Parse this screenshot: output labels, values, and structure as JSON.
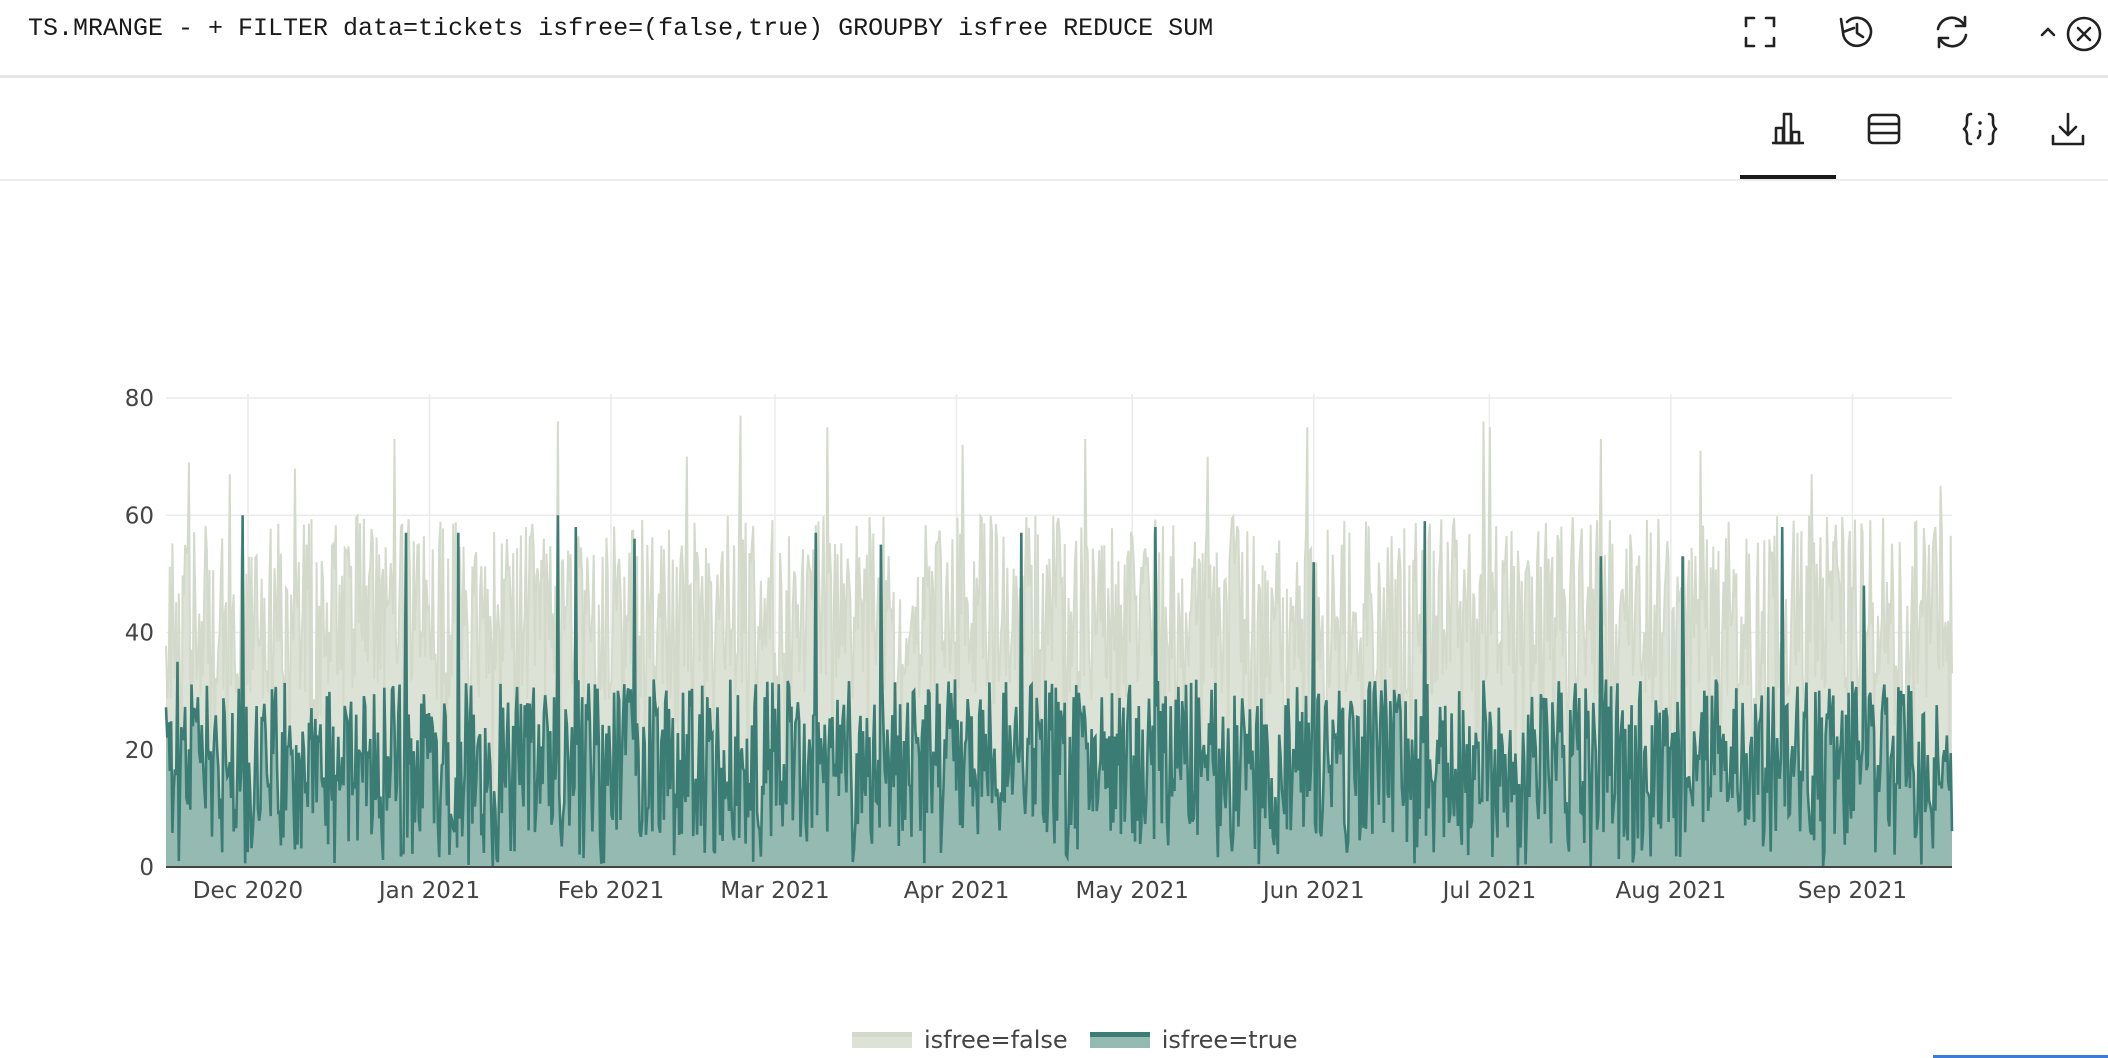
{
  "query": {
    "text": "TS.MRANGE - + FILTER data=tickets isfree=(false,true) GROUPBY isfree REDUCE SUM"
  },
  "top_actions": [
    {
      "name": "fullscreen-button",
      "icon": "fullscreen-icon"
    },
    {
      "name": "history-button",
      "icon": "history-icon"
    },
    {
      "name": "refresh-button",
      "icon": "refresh-icon"
    },
    {
      "name": "collapse-button",
      "icon": "chevron-up-icon"
    },
    {
      "name": "close-button",
      "icon": "close-circle-icon"
    }
  ],
  "view_tabs": [
    {
      "name": "tab-chart",
      "icon": "bar-chart-icon",
      "active": true
    },
    {
      "name": "tab-table",
      "icon": "table-icon",
      "active": false
    },
    {
      "name": "tab-json",
      "icon": "json-braces-icon",
      "active": false
    },
    {
      "name": "tab-download",
      "icon": "download-icon",
      "active": false
    }
  ],
  "colors": {
    "false_fill": "#dde2d6",
    "false_line": "#d4dacb",
    "true_fill": "#95bab2",
    "true_line": "#3b7d74",
    "grid": "#ebebeb",
    "axis": "#444444"
  },
  "chart_data": {
    "type": "area",
    "x_range": [
      "2020-11-17",
      "2021-09-18"
    ],
    "y_range": [
      0,
      80
    ],
    "y_ticks": [
      0,
      20,
      40,
      60,
      80
    ],
    "x_ticks": [
      {
        "date": "2020-12-01",
        "label": "Dec 2020"
      },
      {
        "date": "2021-01-01",
        "label": "Jan 2021"
      },
      {
        "date": "2021-02-01",
        "label": "Feb 2021"
      },
      {
        "date": "2021-03-01",
        "label": "Mar 2021"
      },
      {
        "date": "2021-04-01",
        "label": "Apr 2021"
      },
      {
        "date": "2021-05-01",
        "label": "May 2021"
      },
      {
        "date": "2021-06-01",
        "label": "Jun 2021"
      },
      {
        "date": "2021-07-01",
        "label": "Jul 2021"
      },
      {
        "date": "2021-08-01",
        "label": "Aug 2021"
      },
      {
        "date": "2021-09-01",
        "label": "Sep 2021"
      }
    ],
    "grid": true,
    "legend_position": "bottom-center",
    "series": [
      {
        "name": "isfree=false",
        "key": "false",
        "typical_range": [
          28,
          60
        ],
        "peaks": [
          {
            "date": "2020-11-21",
            "value": 69
          },
          {
            "date": "2020-11-28",
            "value": 67
          },
          {
            "date": "2020-12-09",
            "value": 68
          },
          {
            "date": "2020-12-26",
            "value": 73
          },
          {
            "date": "2021-01-23",
            "value": 76
          },
          {
            "date": "2021-02-14",
            "value": 70
          },
          {
            "date": "2021-02-23",
            "value": 77
          },
          {
            "date": "2021-03-10",
            "value": 75
          },
          {
            "date": "2021-04-02",
            "value": 72
          },
          {
            "date": "2021-04-23",
            "value": 73
          },
          {
            "date": "2021-05-14",
            "value": 70
          },
          {
            "date": "2021-05-31",
            "value": 75
          },
          {
            "date": "2021-06-30",
            "value": 76
          },
          {
            "date": "2021-07-01",
            "value": 75
          },
          {
            "date": "2021-07-20",
            "value": 73
          },
          {
            "date": "2021-08-06",
            "value": 71
          },
          {
            "date": "2021-08-25",
            "value": 67
          },
          {
            "date": "2021-09-16",
            "value": 65
          }
        ]
      },
      {
        "name": "isfree=true",
        "key": "true",
        "typical_range": [
          5,
          32
        ],
        "peaks": [
          {
            "date": "2020-11-19",
            "value": 35
          },
          {
            "date": "2020-11-30",
            "value": 60
          },
          {
            "date": "2020-12-28",
            "value": 57
          },
          {
            "date": "2021-01-06",
            "value": 57
          },
          {
            "date": "2021-01-23",
            "value": 60
          },
          {
            "date": "2021-01-26",
            "value": 58
          },
          {
            "date": "2021-02-05",
            "value": 56
          },
          {
            "date": "2021-03-08",
            "value": 57
          },
          {
            "date": "2021-03-19",
            "value": 55
          },
          {
            "date": "2021-04-12",
            "value": 57
          },
          {
            "date": "2021-05-05",
            "value": 58
          },
          {
            "date": "2021-06-01",
            "value": 52
          },
          {
            "date": "2021-06-20",
            "value": 59
          },
          {
            "date": "2021-07-20",
            "value": 53
          },
          {
            "date": "2021-08-03",
            "value": 53
          },
          {
            "date": "2021-08-20",
            "value": 58
          },
          {
            "date": "2021-09-03",
            "value": 48
          }
        ]
      }
    ]
  }
}
